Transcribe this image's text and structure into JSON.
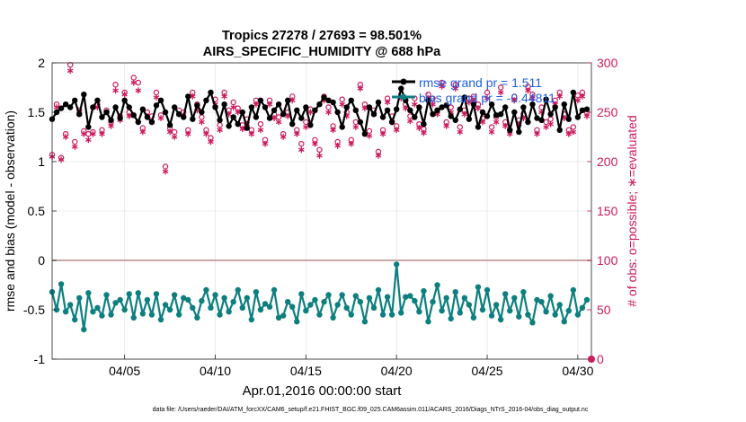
{
  "title_line1": "Tropics 27278 / 27693 = 98.501%",
  "title_line2": "AIRS_SPECIFIC_HUMIDITY @ 688 hPa",
  "xlabel": "Apr.01,2016 00:00:00 start",
  "ylabel_left": "rmse and bias (model - observation)",
  "ylabel_right": "# of obs: o=possible; ∗=evaluated",
  "footer": "data file: /Users/raeder/DAI/ATM_forcXX/CAM6_setup/f.e21.FHIST_BGC.f09_025.CAM6assim.011/ACARS_2016/Diags_NTrS_2016-04/obs_diag_output.nc",
  "legend": {
    "rmse": "rmse grand pr = 1.511",
    "bias": "bias grand pr = -0.44811"
  },
  "colors": {
    "rmse": "#000000",
    "bias": "#0e7f7f",
    "obs": "#cc1a5e",
    "legend_text": "#1f5fe0",
    "zero_line": "#c8a8a8"
  },
  "chart_data": {
    "type": "line",
    "x": [
      1.0,
      1.25,
      1.5,
      1.75,
      2.0,
      2.25,
      2.5,
      2.75,
      3.0,
      3.25,
      3.5,
      3.75,
      4.0,
      4.25,
      4.5,
      4.75,
      5.0,
      5.25,
      5.5,
      5.75,
      6.0,
      6.25,
      6.5,
      6.75,
      7.0,
      7.25,
      7.5,
      7.75,
      8.0,
      8.25,
      8.5,
      8.75,
      9.0,
      9.25,
      9.5,
      9.75,
      10.0,
      10.25,
      10.5,
      10.75,
      11.0,
      11.25,
      11.5,
      11.75,
      12.0,
      12.25,
      12.5,
      12.75,
      13.0,
      13.25,
      13.5,
      13.75,
      14.0,
      14.25,
      14.5,
      14.75,
      15.0,
      15.25,
      15.5,
      15.75,
      16.0,
      16.25,
      16.5,
      16.75,
      17.0,
      17.25,
      17.5,
      17.75,
      18.0,
      18.25,
      18.5,
      18.75,
      19.0,
      19.25,
      19.5,
      19.75,
      20.0,
      20.25,
      20.5,
      20.75,
      21.0,
      21.25,
      21.5,
      21.75,
      22.0,
      22.25,
      22.5,
      22.75,
      23.0,
      23.25,
      23.5,
      23.75,
      24.0,
      24.25,
      24.5,
      24.75,
      25.0,
      25.25,
      25.5,
      25.75,
      26.0,
      26.25,
      26.5,
      26.75,
      27.0,
      27.25,
      27.5,
      27.75,
      28.0,
      28.25,
      28.5,
      28.75,
      29.0,
      29.25,
      29.5,
      29.75,
      30.0,
      30.25,
      30.5
    ],
    "xlim": [
      1,
      30.75
    ],
    "xticks": [
      {
        "value": 5,
        "label": "04/05"
      },
      {
        "value": 10,
        "label": "04/10"
      },
      {
        "value": 15,
        "label": "04/15"
      },
      {
        "value": 20,
        "label": "04/20"
      },
      {
        "value": 25,
        "label": "04/25"
      },
      {
        "value": 30,
        "label": "04/30"
      }
    ],
    "ylim_left": [
      -1,
      2
    ],
    "yticks_left": [
      -1,
      -0.5,
      0,
      0.5,
      1,
      1.5,
      2
    ],
    "ylim_right": [
      0,
      300
    ],
    "yticks_right": [
      0,
      50,
      100,
      150,
      200,
      250,
      300
    ],
    "series": [
      {
        "name": "rmse",
        "axis": "left",
        "values": [
          1.43,
          1.5,
          1.54,
          1.58,
          1.55,
          1.62,
          1.48,
          1.68,
          1.35,
          1.55,
          1.62,
          1.45,
          1.5,
          1.42,
          1.55,
          1.44,
          1.62,
          1.55,
          1.47,
          1.4,
          1.53,
          1.45,
          1.4,
          1.57,
          1.62,
          1.5,
          1.37,
          1.55,
          1.48,
          1.45,
          1.66,
          1.43,
          1.57,
          1.5,
          1.62,
          1.7,
          1.55,
          1.42,
          1.58,
          1.36,
          1.45,
          1.38,
          1.5,
          1.34,
          1.55,
          1.45,
          1.62,
          1.55,
          1.44,
          1.52,
          1.58,
          1.48,
          1.62,
          1.38,
          1.52,
          1.44,
          1.55,
          1.37,
          1.52,
          1.58,
          1.65,
          1.62,
          1.6,
          1.5,
          1.35,
          1.55,
          1.62,
          1.52,
          1.4,
          1.28,
          1.55,
          1.48,
          1.6,
          1.45,
          1.52,
          1.4,
          1.53,
          1.74,
          1.62,
          1.52,
          1.45,
          1.55,
          1.38,
          1.62,
          1.48,
          1.52,
          1.55,
          1.57,
          1.46,
          1.42,
          1.53,
          1.65,
          1.43,
          1.58,
          1.35,
          1.5,
          1.46,
          1.58,
          1.47,
          1.48,
          1.55,
          1.32,
          1.5,
          1.3,
          1.55,
          1.4,
          1.58,
          1.44,
          1.42,
          1.63,
          1.48,
          1.55,
          1.32,
          1.58,
          1.43,
          1.7,
          1.45,
          1.52,
          1.53
        ],
        "marker": "dot"
      },
      {
        "name": "bias",
        "axis": "left",
        "values": [
          -0.32,
          -0.5,
          -0.24,
          -0.52,
          -0.45,
          -0.6,
          -0.38,
          -0.7,
          -0.33,
          -0.52,
          -0.48,
          -0.56,
          -0.35,
          -0.55,
          -0.43,
          -0.4,
          -0.5,
          -0.34,
          -0.58,
          -0.33,
          -0.54,
          -0.4,
          -0.55,
          -0.34,
          -0.6,
          -0.45,
          -0.5,
          -0.35,
          -0.55,
          -0.38,
          -0.4,
          -0.48,
          -0.58,
          -0.41,
          -0.3,
          -0.48,
          -0.35,
          -0.55,
          -0.38,
          -0.52,
          -0.42,
          -0.3,
          -0.48,
          -0.38,
          -0.6,
          -0.32,
          -0.5,
          -0.44,
          -0.47,
          -0.3,
          -0.58,
          -0.56,
          -0.42,
          -0.47,
          -0.62,
          -0.34,
          -0.51,
          -0.45,
          -0.4,
          -0.55,
          -0.42,
          -0.35,
          -0.58,
          -0.45,
          -0.35,
          -0.48,
          -0.55,
          -0.36,
          -0.42,
          -0.62,
          -0.38,
          -0.48,
          -0.3,
          -0.55,
          -0.37,
          -0.55,
          -0.04,
          -0.53,
          -0.37,
          -0.36,
          -0.41,
          -0.52,
          -0.31,
          -0.62,
          -0.42,
          -0.25,
          -0.51,
          -0.38,
          -0.59,
          -0.32,
          -0.53,
          -0.38,
          -0.45,
          -0.58,
          -0.27,
          -0.5,
          -0.3,
          -0.56,
          -0.45,
          -0.6,
          -0.34,
          -0.51,
          -0.38,
          -0.57,
          -0.32,
          -0.55,
          -0.63,
          -0.4,
          -0.42,
          -0.52,
          -0.36,
          -0.55,
          -0.45,
          -0.62,
          -0.51,
          -0.3,
          -0.55,
          -0.48,
          -0.4
        ],
        "marker": "dot"
      },
      {
        "name": "obs possible",
        "axis": "right",
        "marker": "o",
        "values": [
          207,
          258,
          204,
          228,
          298,
          220,
          252,
          231,
          228,
          230,
          258,
          232,
          252,
          240,
          278,
          246,
          270,
          250,
          285,
          280,
          234,
          250,
          246,
          270,
          247,
          195,
          234,
          230,
          252,
          250,
          232,
          270,
          258,
          245,
          232,
          224,
          263,
          237,
          270,
          252,
          260,
          254,
          237,
          243,
          232,
          262,
          238,
          222,
          262,
          248,
          245,
          228,
          250,
          266,
          232,
          218,
          240,
          253,
          222,
          212,
          266,
          255,
          236,
          220,
          263,
          250,
          222,
          240,
          278,
          258,
          231,
          252,
          210,
          232,
          264,
          246,
          236,
          268,
          258,
          246,
          264,
          238,
          233,
          268,
          264,
          252,
          280,
          240,
          255,
          278,
          235,
          252,
          264,
          266,
          258,
          244,
          270,
          235,
          245,
          275,
          240,
          232,
          266,
          242,
          248,
          276,
          268,
          232,
          255,
          240,
          243,
          262,
          270,
          248,
          232,
          235,
          267,
          270,
          250
        ]
      },
      {
        "name": "obs evaluated",
        "axis": "right",
        "marker": "asterisk",
        "values": [
          205,
          255,
          202,
          225,
          292,
          215,
          248,
          228,
          222,
          228,
          255,
          228,
          250,
          236,
          272,
          242,
          268,
          246,
          280,
          272,
          230,
          246,
          240,
          265,
          244,
          190,
          230,
          225,
          248,
          246,
          228,
          266,
          252,
          240,
          228,
          220,
          258,
          232,
          266,
          248,
          255,
          250,
          233,
          238,
          228,
          258,
          232,
          218,
          258,
          244,
          240,
          225,
          246,
          262,
          228,
          212,
          235,
          250,
          218,
          206,
          262,
          250,
          232,
          216,
          258,
          246,
          218,
          235,
          274,
          254,
          226,
          248,
          206,
          228,
          260,
          240,
          232,
          264,
          254,
          241,
          258,
          234,
          229,
          264,
          258,
          248,
          276,
          236,
          250,
          274,
          230,
          248,
          260,
          262,
          254,
          240,
          264,
          230,
          240,
          270,
          236,
          228,
          262,
          238,
          244,
          272,
          264,
          228,
          250,
          235,
          238,
          258,
          266,
          244,
          228,
          230,
          262,
          266,
          246
        ]
      }
    ]
  }
}
